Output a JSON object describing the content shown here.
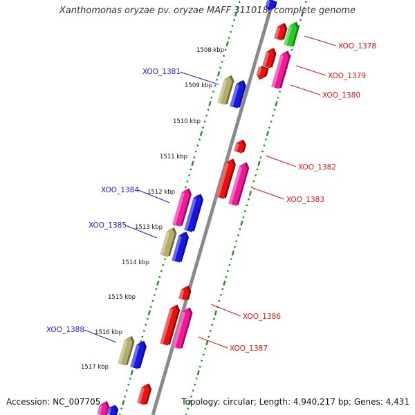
{
  "title": "Xanthomonas oryzae pv. oryzae MAFF 311018, complete genome",
  "footer": {
    "accession": "Accession: NC_007705",
    "topology": "Topology: circular; Length: 4,940,217 bp; Genes: 4,431"
  },
  "colors": {
    "backbone": "#8a8a8a",
    "ticks": "#1f8a1f",
    "label_left": "#1a1ad6",
    "label_right": "#e01010",
    "gene_red": "#e81212",
    "gene_magenta": "#f0199a",
    "gene_blue": "#1818e0",
    "gene_khaki": "#b4ad6a",
    "gene_green": "#22cc22"
  },
  "scale": {
    "unit": "kbp",
    "ticks": [
      {
        "pos": 1508,
        "label": "1508 kbp"
      },
      {
        "pos": 1509,
        "label": "1509 kbp"
      },
      {
        "pos": 1510,
        "label": "1510 kbp"
      },
      {
        "pos": 1511,
        "label": "1511 kbp"
      },
      {
        "pos": 1512,
        "label": "1512 kbp"
      },
      {
        "pos": 1513,
        "label": "1513 kbp"
      },
      {
        "pos": 1514,
        "label": "1514 kbp"
      },
      {
        "pos": 1515,
        "label": "1515 kbp"
      },
      {
        "pos": 1516,
        "label": "1516 kbp"
      },
      {
        "pos": 1517,
        "label": "1517 kbp"
      }
    ]
  },
  "genes": [
    {
      "id": "XOO_1378",
      "label": "XOO_1378",
      "side": "right",
      "strand": "+",
      "color": "gene_green",
      "labeled": true
    },
    {
      "id": "XOO_1379",
      "label": "XOO_1379",
      "side": "right",
      "strand": "+",
      "color": "gene_magenta",
      "labeled": true
    },
    {
      "id": "XOO_1380",
      "label": "XOO_1380",
      "side": "right",
      "strand": "-",
      "color": "gene_red",
      "labeled": true
    },
    {
      "id": "XOO_1381",
      "label": "XOO_1381",
      "side": "left",
      "strand": "+",
      "color": "gene_blue",
      "labeled": true
    },
    {
      "id": "XOO_1382",
      "label": "XOO_1382",
      "side": "right",
      "strand": "+",
      "color": "gene_red",
      "labeled": true
    },
    {
      "id": "XOO_1383",
      "label": "XOO_1383",
      "side": "right",
      "strand": "+",
      "color": "gene_magenta",
      "labeled": true
    },
    {
      "id": "XOO_1384",
      "label": "XOO_1384",
      "side": "left",
      "strand": "+",
      "color": "gene_magenta",
      "labeled": true
    },
    {
      "id": "XOO_1385",
      "label": "XOO_1385",
      "side": "left",
      "strand": "-",
      "color": "gene_khaki",
      "labeled": true
    },
    {
      "id": "XOO_1386",
      "label": "XOO_1386",
      "side": "right",
      "strand": "+",
      "color": "gene_red",
      "labeled": true
    },
    {
      "id": "XOO_1387",
      "label": "XOO_1387",
      "side": "right",
      "strand": "+",
      "color": "gene_magenta",
      "labeled": true
    },
    {
      "id": "XOO_1388",
      "label": "XOO_1388",
      "side": "left",
      "strand": "+",
      "color": "gene_khaki",
      "labeled": true
    }
  ]
}
